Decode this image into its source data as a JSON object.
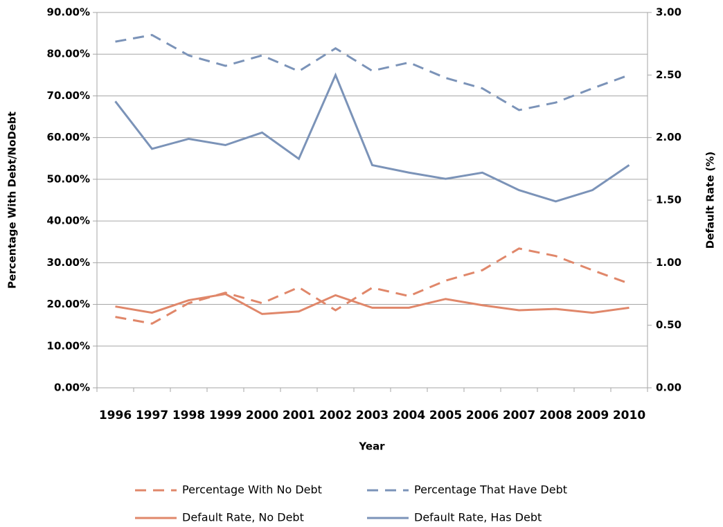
{
  "chart_data": {
    "type": "line",
    "x_label": "Year",
    "y_label": "Percentage With Debt/NoDebt",
    "y2_label": "Default Rate (%)",
    "categories": [
      "1996",
      "1997",
      "1998",
      "1999",
      "2000",
      "2001",
      "2002",
      "2003",
      "2004",
      "2005",
      "2006",
      "2007",
      "2008",
      "2009",
      "2010"
    ],
    "ylim": [
      0,
      90
    ],
    "yticks": [
      {
        "value": 0,
        "label": "0.00%"
      },
      {
        "value": 10,
        "label": "10.00%"
      },
      {
        "value": 20,
        "label": "20.00%"
      },
      {
        "value": 30,
        "label": "30.00%"
      },
      {
        "value": 40,
        "label": "40.00%"
      },
      {
        "value": 50,
        "label": "50.00%"
      },
      {
        "value": 60,
        "label": "60.00%"
      },
      {
        "value": 70,
        "label": "70.00%"
      },
      {
        "value": 80,
        "label": "80.00%"
      },
      {
        "value": 90,
        "label": "90.00%"
      }
    ],
    "y2lim": [
      0,
      3
    ],
    "y2ticks": [
      {
        "value": 0,
        "label": "0.00"
      },
      {
        "value": 0.5,
        "label": "0.50"
      },
      {
        "value": 1,
        "label": "1.00"
      },
      {
        "value": 1.5,
        "label": "1.50"
      },
      {
        "value": 2,
        "label": "2.00"
      },
      {
        "value": 2.5,
        "label": "2.50"
      },
      {
        "value": 3,
        "label": "3.00"
      }
    ],
    "grid": true,
    "legend": "bottom",
    "series": [
      {
        "name": "Percentage With No Debt",
        "color": "#e0876a",
        "style": "dashed",
        "values": [
          17,
          15.4,
          20.3,
          22.8,
          20.3,
          24.1,
          18.6,
          24,
          22,
          25.7,
          28.2,
          33.4,
          31.6,
          28.2,
          25
        ]
      },
      {
        "name": "Percentage That Have Debt",
        "color": "#7b93b8",
        "style": "dashed",
        "values": [
          83,
          84.6,
          79.7,
          77.2,
          79.7,
          75.9,
          81.4,
          76,
          78,
          74.3,
          71.8,
          66.6,
          68.4,
          71.8,
          75
        ]
      },
      {
        "name": "Default Rate, No Debt",
        "color": "#e0876a",
        "style": "solid",
        "axis": "y2",
        "values": [
          0.65,
          0.6,
          0.7,
          0.75,
          0.59,
          0.61,
          0.74,
          0.64,
          0.64,
          0.71,
          0.66,
          0.62,
          0.63,
          0.6,
          0.64
        ]
      },
      {
        "name": "Default Rate, Has Debt",
        "color": "#7b93b8",
        "style": "solid",
        "axis": "y2",
        "values": [
          2.29,
          1.91,
          1.99,
          1.94,
          2.04,
          1.83,
          2.5,
          1.78,
          1.72,
          1.67,
          1.72,
          1.58,
          1.49,
          1.58,
          1.78
        ]
      }
    ]
  }
}
